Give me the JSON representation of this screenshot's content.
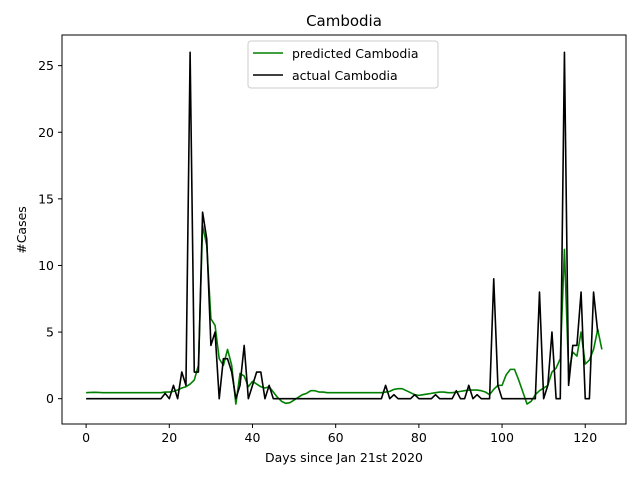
{
  "chart_data": {
    "type": "line",
    "title": "Cambodia",
    "xlabel": "Days since Jan 21st 2020",
    "ylabel": "#Cases",
    "xlim": [
      -5.8,
      129.8
    ],
    "ylim": [
      -1.9,
      27.3
    ],
    "x_ticks": [
      0,
      20,
      40,
      60,
      80,
      100,
      120
    ],
    "y_ticks": [
      0,
      5,
      10,
      15,
      20,
      25
    ],
    "grid": false,
    "legend_position": "top-center",
    "series": [
      {
        "name": "predicted Cambodia",
        "color": "#008000",
        "points": [
          [
            0,
            0.45
          ],
          [
            1,
            0.47
          ],
          [
            2,
            0.48
          ],
          [
            3,
            0.47
          ],
          [
            4,
            0.45
          ],
          [
            5,
            0.45
          ],
          [
            6,
            0.45
          ],
          [
            8,
            0.45
          ],
          [
            10,
            0.45
          ],
          [
            12,
            0.45
          ],
          [
            14,
            0.45
          ],
          [
            16,
            0.45
          ],
          [
            18,
            0.45
          ],
          [
            19,
            0.5
          ],
          [
            20,
            0.5
          ],
          [
            21,
            0.55
          ],
          [
            22,
            0.65
          ],
          [
            23,
            0.8
          ],
          [
            24,
            0.9
          ],
          [
            25,
            1.1
          ],
          [
            26,
            1.4
          ],
          [
            27,
            2.5
          ],
          [
            28,
            13
          ],
          [
            29,
            11.5
          ],
          [
            30,
            6
          ],
          [
            31,
            5.5
          ],
          [
            32,
            3
          ],
          [
            33,
            2.5
          ],
          [
            34,
            3.7
          ],
          [
            35,
            2.5
          ],
          [
            36,
            -0.4
          ],
          [
            37,
            1.9
          ],
          [
            38,
            1.7
          ],
          [
            39,
            0.9
          ],
          [
            40,
            1.3
          ],
          [
            41,
            1.1
          ],
          [
            42,
            0.9
          ],
          [
            43,
            0.8
          ],
          [
            44,
            0.9
          ],
          [
            45,
            0.5
          ],
          [
            46,
            0.1
          ],
          [
            47,
            -0.2
          ],
          [
            48,
            -0.35
          ],
          [
            49,
            -0.3
          ],
          [
            50,
            -0.1
          ],
          [
            51,
            0.1
          ],
          [
            52,
            0.3
          ],
          [
            53,
            0.4
          ],
          [
            54,
            0.6
          ],
          [
            55,
            0.6
          ],
          [
            56,
            0.5
          ],
          [
            57,
            0.5
          ],
          [
            58,
            0.45
          ],
          [
            60,
            0.45
          ],
          [
            62,
            0.45
          ],
          [
            64,
            0.45
          ],
          [
            66,
            0.45
          ],
          [
            68,
            0.45
          ],
          [
            70,
            0.45
          ],
          [
            71,
            0.45
          ],
          [
            72,
            0.5
          ],
          [
            73,
            0.55
          ],
          [
            74,
            0.7
          ],
          [
            75,
            0.75
          ],
          [
            76,
            0.75
          ],
          [
            77,
            0.6
          ],
          [
            78,
            0.45
          ],
          [
            79,
            0.3
          ],
          [
            80,
            0.25
          ],
          [
            81,
            0.3
          ],
          [
            82,
            0.35
          ],
          [
            83,
            0.4
          ],
          [
            84,
            0.45
          ],
          [
            85,
            0.5
          ],
          [
            86,
            0.5
          ],
          [
            87,
            0.45
          ],
          [
            88,
            0.45
          ],
          [
            89,
            0.5
          ],
          [
            90,
            0.55
          ],
          [
            91,
            0.6
          ],
          [
            92,
            0.65
          ],
          [
            93,
            0.65
          ],
          [
            94,
            0.65
          ],
          [
            95,
            0.6
          ],
          [
            96,
            0.5
          ],
          [
            97,
            0.3
          ],
          [
            98,
            0.7
          ],
          [
            99,
            1
          ],
          [
            100,
            1
          ],
          [
            101,
            1.8
          ],
          [
            102,
            2.2
          ],
          [
            103,
            2.2
          ],
          [
            104,
            1.4
          ],
          [
            105,
            0.5
          ],
          [
            106,
            -0.4
          ],
          [
            107,
            -0.2
          ],
          [
            108,
            0.3
          ],
          [
            109,
            0.6
          ],
          [
            110,
            0.8
          ],
          [
            111,
            1
          ],
          [
            112,
            2
          ],
          [
            113,
            2.3
          ],
          [
            114,
            3
          ],
          [
            115,
            11.2
          ],
          [
            116,
            2
          ],
          [
            117,
            3.5
          ],
          [
            118,
            3.2
          ],
          [
            119,
            5
          ],
          [
            120,
            2.6
          ],
          [
            121,
            2.9
          ],
          [
            122,
            3.7
          ],
          [
            123,
            5.2
          ],
          [
            124,
            3.7
          ]
        ]
      },
      {
        "name": "actual Cambodia",
        "color": "#000000",
        "points": [
          [
            0,
            0
          ],
          [
            5,
            0
          ],
          [
            10,
            0
          ],
          [
            15,
            0
          ],
          [
            18,
            0
          ],
          [
            19,
            0.4
          ],
          [
            20,
            0
          ],
          [
            21,
            1
          ],
          [
            22,
            0
          ],
          [
            23,
            2
          ],
          [
            24,
            1
          ],
          [
            25,
            26
          ],
          [
            26,
            2
          ],
          [
            27,
            2
          ],
          [
            28,
            14
          ],
          [
            29,
            12
          ],
          [
            30,
            4
          ],
          [
            31,
            5
          ],
          [
            32,
            0
          ],
          [
            33,
            3
          ],
          [
            34,
            3
          ],
          [
            35,
            2
          ],
          [
            36,
            0
          ],
          [
            37,
            1
          ],
          [
            38,
            4
          ],
          [
            39,
            0
          ],
          [
            40,
            1
          ],
          [
            41,
            2
          ],
          [
            42,
            2
          ],
          [
            43,
            0
          ],
          [
            44,
            1
          ],
          [
            45,
            0
          ],
          [
            50,
            0
          ],
          [
            55,
            0
          ],
          [
            60,
            0
          ],
          [
            65,
            0
          ],
          [
            70,
            0
          ],
          [
            71,
            0
          ],
          [
            72,
            1
          ],
          [
            73,
            0
          ],
          [
            74,
            0.3
          ],
          [
            75,
            0
          ],
          [
            76,
            0
          ],
          [
            77,
            0
          ],
          [
            78,
            0
          ],
          [
            79,
            0.3
          ],
          [
            80,
            0
          ],
          [
            81,
            0
          ],
          [
            82,
            0
          ],
          [
            83,
            0
          ],
          [
            84,
            0.3
          ],
          [
            85,
            0
          ],
          [
            86,
            0
          ],
          [
            87,
            0
          ],
          [
            88,
            0
          ],
          [
            89,
            0.6
          ],
          [
            90,
            0
          ],
          [
            91,
            0
          ],
          [
            92,
            1
          ],
          [
            93,
            0
          ],
          [
            94,
            0.3
          ],
          [
            95,
            0
          ],
          [
            96,
            0
          ],
          [
            97,
            0
          ],
          [
            98,
            9
          ],
          [
            99,
            1
          ],
          [
            100,
            0
          ],
          [
            101,
            0
          ],
          [
            102,
            0
          ],
          [
            103,
            0
          ],
          [
            104,
            0
          ],
          [
            105,
            0
          ],
          [
            106,
            0
          ],
          [
            107,
            0
          ],
          [
            108,
            0
          ],
          [
            109,
            8
          ],
          [
            110,
            0
          ],
          [
            111,
            1
          ],
          [
            112,
            5
          ],
          [
            113,
            0
          ],
          [
            114,
            0
          ],
          [
            115,
            26
          ],
          [
            116,
            1
          ],
          [
            117,
            4
          ],
          [
            118,
            4
          ],
          [
            119,
            8
          ],
          [
            120,
            0
          ],
          [
            121,
            0
          ],
          [
            122,
            8
          ],
          [
            123,
            5
          ]
        ]
      }
    ]
  }
}
